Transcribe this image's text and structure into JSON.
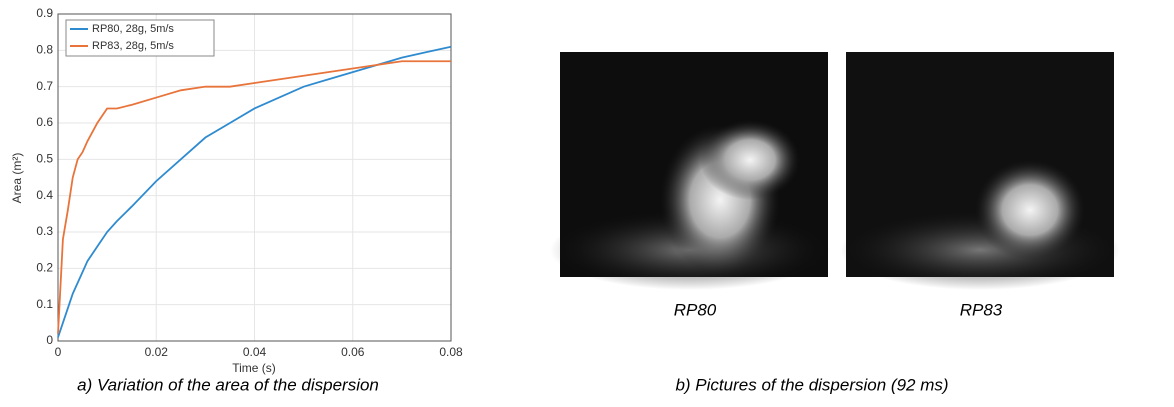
{
  "chart_data": {
    "type": "line",
    "x_label": "Time (s)",
    "y_label": "Area (m²)",
    "x": [
      0,
      0.001,
      0.002,
      0.003,
      0.004,
      0.005,
      0.006,
      0.008,
      0.01,
      0.012,
      0.015,
      0.02,
      0.025,
      0.03,
      0.035,
      0.04,
      0.045,
      0.05,
      0.055,
      0.06,
      0.065,
      0.07,
      0.075,
      0.08
    ],
    "series": [
      {
        "name": "RP80, 28g, 5m/s",
        "color": "#2f8bd0",
        "values": [
          0.01,
          0.05,
          0.09,
          0.13,
          0.16,
          0.19,
          0.22,
          0.26,
          0.3,
          0.33,
          0.37,
          0.44,
          0.5,
          0.56,
          0.6,
          0.64,
          0.67,
          0.7,
          0.72,
          0.74,
          0.76,
          0.78,
          0.795,
          0.81
        ]
      },
      {
        "name": "RP83, 28g, 5m/s",
        "color": "#e8743b",
        "values": [
          0.02,
          0.28,
          0.36,
          0.45,
          0.5,
          0.52,
          0.55,
          0.6,
          0.64,
          0.64,
          0.65,
          0.67,
          0.69,
          0.7,
          0.7,
          0.71,
          0.72,
          0.73,
          0.74,
          0.75,
          0.76,
          0.77,
          0.77,
          0.77
        ]
      }
    ],
    "xlim": [
      0,
      0.08
    ],
    "xticks": [
      0,
      0.02,
      0.04,
      0.06,
      0.08
    ],
    "ylim": [
      0,
      0.9
    ],
    "yticks": [
      0,
      0.1,
      0.2,
      0.3,
      0.4,
      0.5,
      0.6,
      0.7,
      0.8,
      0.9
    ],
    "grid": true,
    "legend": "top-left"
  },
  "photos": [
    {
      "label": "RP80"
    },
    {
      "label": "RP83"
    }
  ],
  "captions": [
    "a) Variation of the area of the dispersion",
    "b) Pictures of the dispersion (92 ms)"
  ]
}
